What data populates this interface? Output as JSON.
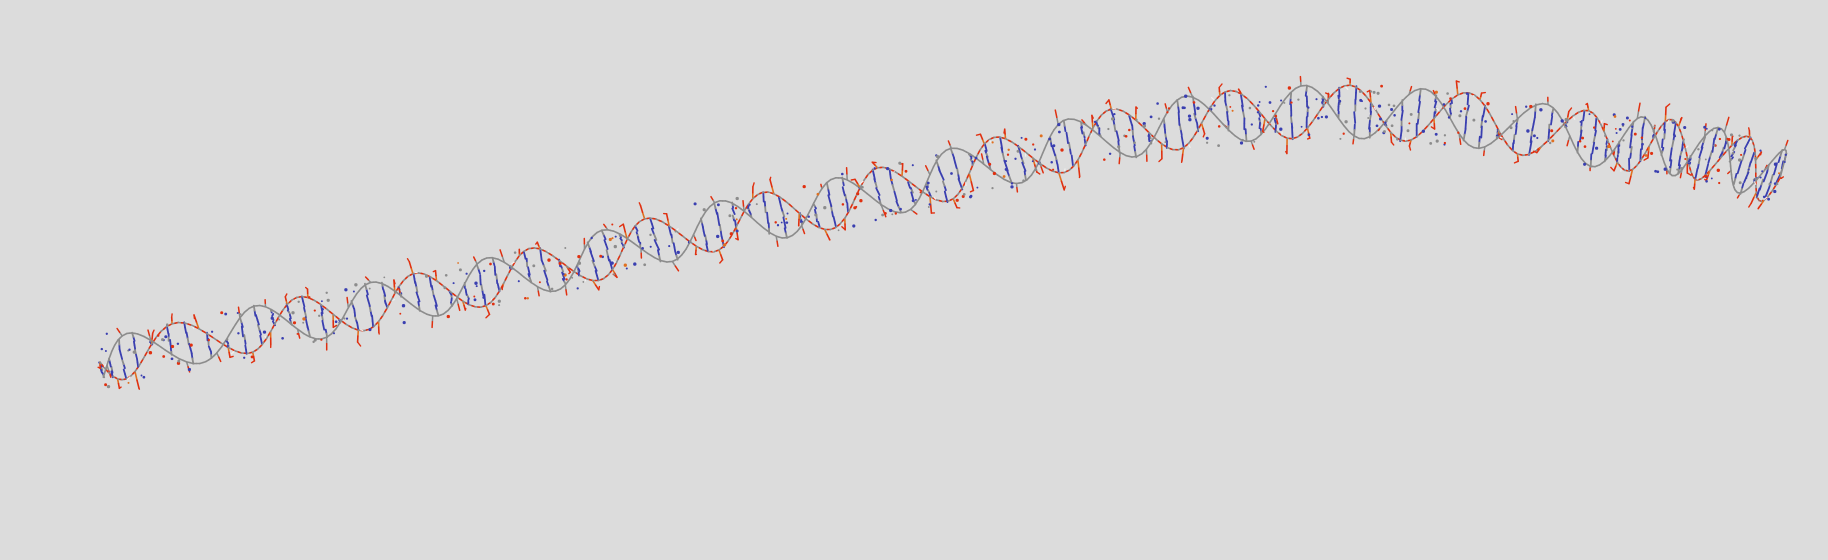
{
  "scene": {
    "background_color": "#dcdcdc",
    "subject": "dna-double-helix-stick-model"
  },
  "atom_colors": {
    "carbon": "#8c8c8c",
    "nitrogen": "#3a3fb0",
    "oxygen": "#e03010",
    "phosphorus": "#e07020",
    "hydrogen": "#f0f0f0"
  }
}
